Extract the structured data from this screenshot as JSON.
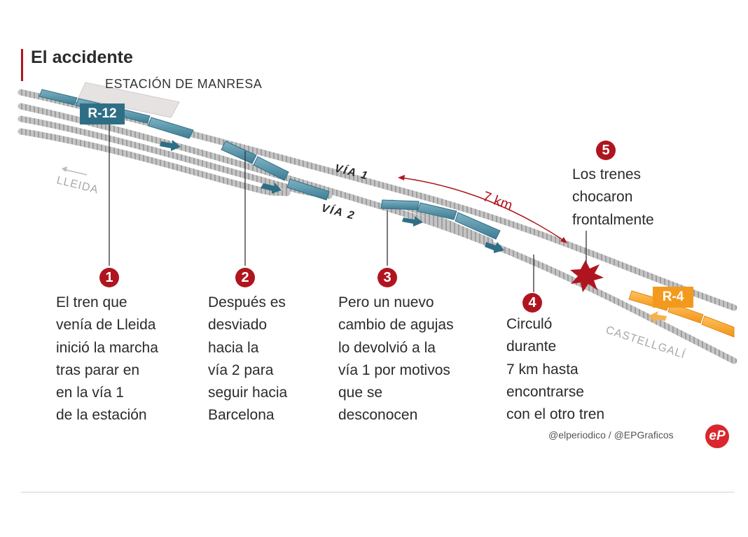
{
  "title": "El accidente",
  "station": "ESTACIÓN DE MANRESA",
  "labels": {
    "lleida": "LLEIDA",
    "castellgali": "CASTELLGALÍ",
    "via1": "VÍA 1",
    "via2": "VÍA 2",
    "distance": "7 km"
  },
  "trains": {
    "r12": "R-12",
    "r4": "R-4"
  },
  "steps": [
    {
      "num": "1",
      "text": "El tren que\nvenía de Lleida\ninició la marcha\ntras parar en\nen la vía 1\nde la estación"
    },
    {
      "num": "2",
      "text": "Después es\ndesviado\nhacia la\nvía 2 para\nseguir hacia\nBarcelona"
    },
    {
      "num": "3",
      "text": "Pero un nuevo\ncambio de agujas\nlo devolvió a la\nvía 1 por motivos\nque se\ndesconocen"
    },
    {
      "num": "4",
      "text": "Circuló\ndurante\n7 km hasta\nencontrarse\ncon el otro tren"
    },
    {
      "num": "5",
      "text": "Los trenes\nchocaron\nfrontalmente"
    }
  ],
  "credit": "@elperiodico / @EPGraficos",
  "logo": "eP",
  "colors": {
    "accent": "#b0151f",
    "train_r12": "#2f6f86",
    "train_r4": "#f39a1e",
    "track": "#b9b9b9"
  }
}
